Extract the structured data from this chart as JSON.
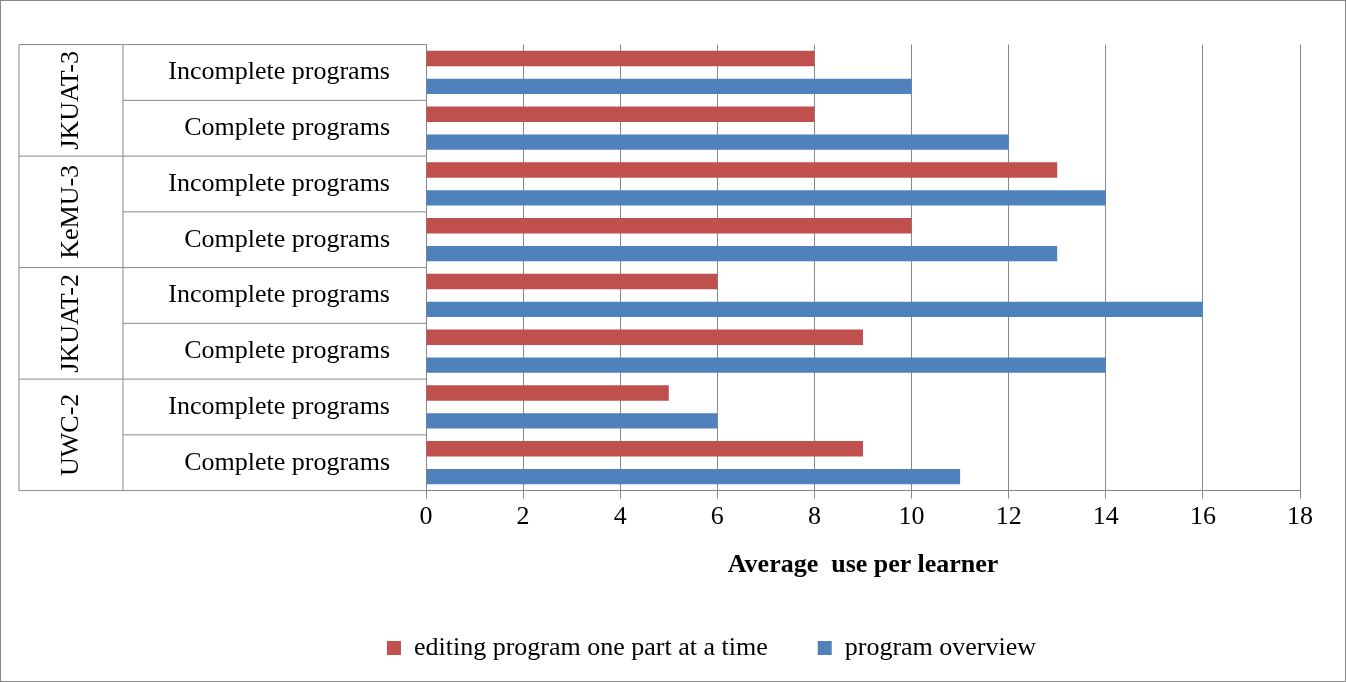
{
  "chart_data": {
    "type": "bar",
    "orientation": "horizontal",
    "xlabel": "Average  use per learner",
    "categories": [
      "Incomplete programs",
      "Complete programs",
      "Incomplete programs",
      "Complete programs",
      "Incomplete programs",
      "Complete programs",
      "Incomplete programs",
      "Complete programs"
    ],
    "series": [
      {
        "name": "editing program one part at a time",
        "color": "#c0504d",
        "values": [
          8,
          8,
          13,
          10,
          6,
          9,
          5,
          9
        ]
      },
      {
        "name": "program overview",
        "color": "#4f81bd",
        "values": [
          10,
          12,
          14,
          13,
          16,
          14,
          6,
          11
        ]
      }
    ],
    "annotations": [
      "JKUAT-3",
      "KeMU-3",
      "JKUAT-2",
      "UWC-2"
    ],
    "xlim": [
      0,
      18
    ],
    "xticks": [
      0,
      2,
      4,
      6,
      8,
      10,
      12,
      14,
      16,
      18
    ],
    "grid": "x",
    "legend": "bottom"
  }
}
